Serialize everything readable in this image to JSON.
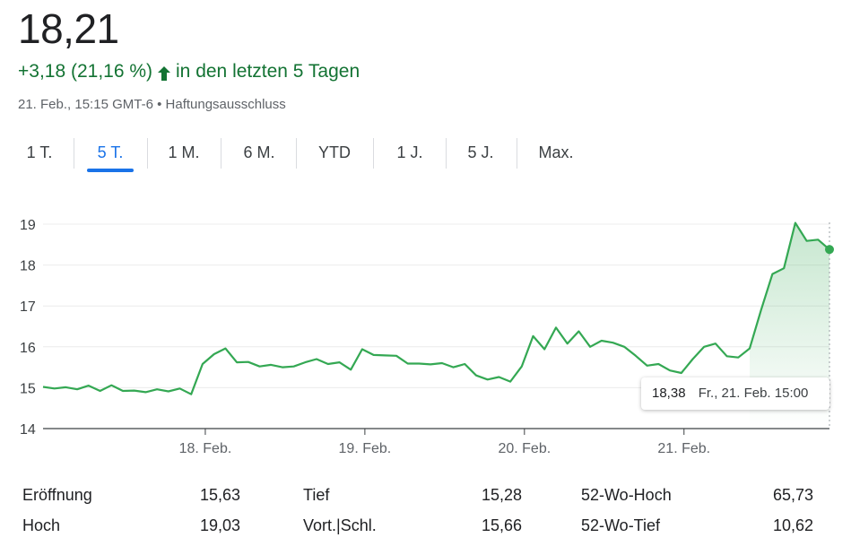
{
  "header": {
    "price": "18,21",
    "change": "+3,18 (21,16 %)",
    "change_period": "in den letzten 5 Tagen",
    "timestamp": "21. Feb., 15:15 GMT-6",
    "disclaimer": "Haftungsausschluss",
    "up_color": "#137333",
    "icon": "arrow-up-icon"
  },
  "tabs": [
    {
      "label": "1 T.",
      "active": false
    },
    {
      "label": "5 T.",
      "active": true
    },
    {
      "label": "1 M.",
      "active": false
    },
    {
      "label": "6 M.",
      "active": false
    },
    {
      "label": "YTD",
      "active": false
    },
    {
      "label": "1 J.",
      "active": false
    },
    {
      "label": "5 J.",
      "active": false
    },
    {
      "label": "Max.",
      "active": false
    }
  ],
  "tooltip": {
    "value": "18,38",
    "time": "Fr., 21. Feb. 15:00"
  },
  "stats": {
    "open_label": "Eröffnung",
    "open_value": "15,63",
    "high_label": "Hoch",
    "high_value": "19,03",
    "low_label": "Tief",
    "low_value": "15,28",
    "prev_close_label": "Vort.|Schl.",
    "prev_close_value": "15,66",
    "wk52_high_label": "52-Wo-Hoch",
    "wk52_high_value": "65,73",
    "wk52_low_label": "52-Wo-Tief",
    "wk52_low_value": "10,62"
  },
  "chart_data": {
    "type": "area",
    "xlabel": "",
    "ylabel": "",
    "ylim": [
      14,
      19.4
    ],
    "yticks": [
      14,
      15,
      16,
      17,
      18,
      19
    ],
    "ytick_labels": [
      "14",
      "15",
      "16",
      "17",
      "18",
      "19"
    ],
    "xtick_labels": [
      "18. Feb.",
      "19. Feb.",
      "20. Feb.",
      "21. Feb."
    ],
    "xtick_index": [
      14,
      28,
      42,
      56
    ],
    "line_color": "#34a853",
    "grid": true,
    "series": [
      {
        "values": [
          15.02,
          14.98,
          15.01,
          14.96,
          15.05,
          14.92,
          15.06,
          14.92,
          14.93,
          14.89,
          14.96,
          14.91,
          14.98,
          14.84,
          15.58,
          15.82,
          15.96,
          15.62,
          15.63,
          15.52,
          15.56,
          15.5,
          15.52,
          15.62,
          15.7,
          15.58,
          15.62,
          15.44,
          15.94,
          15.8,
          15.79,
          15.78,
          15.59,
          15.59,
          15.57,
          15.6,
          15.5,
          15.58,
          15.3,
          15.2,
          15.26,
          15.15,
          15.52,
          16.26,
          15.94,
          16.47,
          16.08,
          16.38,
          16.0,
          16.15,
          16.1,
          16.0,
          15.78,
          15.54,
          15.58,
          15.42,
          15.36,
          15.7,
          16.0,
          16.08,
          15.77,
          15.74,
          15.96,
          16.9,
          17.78,
          17.92,
          19.03,
          18.59,
          18.62,
          18.38
        ]
      }
    ]
  }
}
